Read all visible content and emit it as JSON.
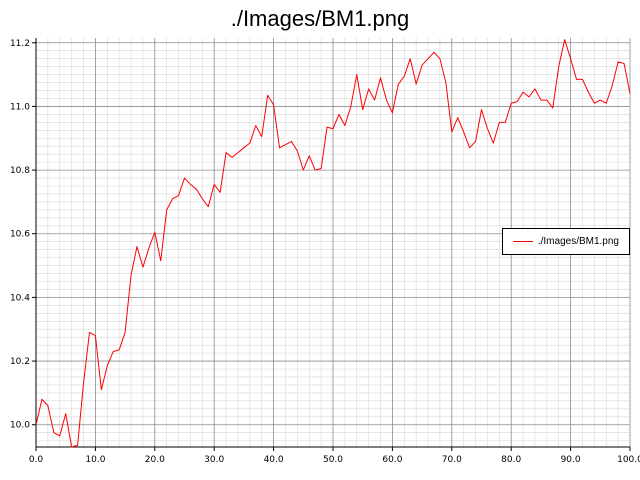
{
  "chart_data": {
    "type": "line",
    "title": "./Images/BM1.png",
    "xlabel": "",
    "ylabel": "",
    "xlim": [
      0,
      100
    ],
    "ylim": [
      9.93,
      11.215
    ],
    "x_ticks": [
      "0.0",
      "10.0",
      "20.0",
      "30.0",
      "40.0",
      "50.0",
      "60.0",
      "70.0",
      "80.0",
      "90.0",
      "100.0"
    ],
    "y_ticks": [
      "10.0",
      "10.2",
      "10.4",
      "10.6",
      "10.8",
      "11.0",
      "11.2"
    ],
    "grid": true,
    "legend_position": "right",
    "series": [
      {
        "name": "./Images/BM1.png",
        "color": "#ff0000",
        "x": [
          0,
          1,
          2,
          3,
          4,
          5,
          6,
          7,
          8,
          9,
          10,
          11,
          12,
          13,
          14,
          15,
          16,
          17,
          18,
          19,
          20,
          21,
          22,
          23,
          24,
          25,
          26,
          27,
          28,
          29,
          30,
          31,
          32,
          33,
          34,
          35,
          36,
          37,
          38,
          39,
          40,
          41,
          42,
          43,
          44,
          45,
          46,
          47,
          48,
          49,
          50,
          51,
          52,
          53,
          54,
          55,
          56,
          57,
          58,
          59,
          60,
          61,
          62,
          63,
          64,
          65,
          66,
          67,
          68,
          69,
          70,
          71,
          72,
          73,
          74,
          75,
          76,
          77,
          78,
          79,
          80,
          81,
          82,
          83,
          84,
          85,
          86,
          87,
          88,
          89,
          90,
          91,
          92,
          93,
          94,
          95,
          96,
          97,
          98,
          99,
          100
        ],
        "y": [
          10.0,
          10.08,
          10.06,
          9.975,
          9.965,
          10.035,
          9.93,
          9.935,
          10.13,
          10.29,
          10.28,
          10.11,
          10.185,
          10.23,
          10.235,
          10.29,
          10.47,
          10.56,
          10.495,
          10.555,
          10.605,
          10.515,
          10.675,
          10.71,
          10.72,
          10.775,
          10.755,
          10.74,
          10.71,
          10.685,
          10.755,
          10.73,
          10.855,
          10.84,
          10.855,
          10.87,
          10.885,
          10.94,
          10.905,
          11.035,
          11.005,
          10.87,
          10.88,
          10.89,
          10.86,
          10.8,
          10.845,
          10.8,
          10.805,
          10.935,
          10.93,
          10.975,
          10.94,
          11.0,
          11.1,
          10.99,
          11.055,
          11.02,
          11.09,
          11.02,
          10.98,
          11.07,
          11.095,
          11.15,
          11.07,
          11.13,
          11.15,
          11.17,
          11.15,
          11.075,
          10.92,
          10.965,
          10.92,
          10.87,
          10.89,
          10.99,
          10.93,
          10.885,
          10.95,
          10.95,
          11.01,
          11.015,
          11.045,
          11.03,
          11.055,
          11.02,
          11.02,
          10.995,
          11.125,
          11.21,
          11.15,
          11.085,
          11.085,
          11.045,
          11.01,
          11.02,
          11.01,
          11.065,
          11.14,
          11.135,
          11.04
        ]
      }
    ]
  }
}
